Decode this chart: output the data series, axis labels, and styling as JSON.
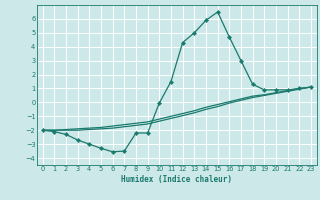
{
  "title": "",
  "xlabel": "Humidex (Indice chaleur)",
  "ylabel": "",
  "bg_color": "#cce8e8",
  "grid_color": "#ffffff",
  "line_color": "#1a7a6e",
  "marker": "D",
  "markersize": 2.2,
  "linewidth": 0.9,
  "xlim": [
    -0.5,
    23.5
  ],
  "ylim": [
    -4.5,
    7.0
  ],
  "xticks": [
    0,
    1,
    2,
    3,
    4,
    5,
    6,
    7,
    8,
    9,
    10,
    11,
    12,
    13,
    14,
    15,
    16,
    17,
    18,
    19,
    20,
    21,
    22,
    23
  ],
  "yticks": [
    -4,
    -3,
    -2,
    -1,
    0,
    1,
    2,
    3,
    4,
    5,
    6
  ],
  "line1_x": [
    0,
    1,
    2,
    3,
    4,
    5,
    6,
    7,
    8,
    9,
    10,
    11,
    12,
    13,
    14,
    15,
    16,
    17,
    18,
    19,
    20,
    21,
    22,
    23
  ],
  "line1_y": [
    -2.0,
    -2.1,
    -2.3,
    -2.7,
    -3.0,
    -3.3,
    -3.55,
    -3.5,
    -2.2,
    -2.2,
    -0.05,
    1.5,
    4.3,
    5.0,
    5.9,
    6.5,
    4.7,
    3.0,
    1.3,
    0.9,
    0.9,
    0.9,
    1.0,
    1.1
  ],
  "line2_x": [
    0,
    1,
    2,
    3,
    4,
    5,
    6,
    7,
    8,
    9,
    10,
    11,
    12,
    13,
    14,
    15,
    16,
    17,
    18,
    19,
    20,
    21,
    22,
    23
  ],
  "line2_y": [
    -2.0,
    -2.0,
    -1.95,
    -1.9,
    -1.85,
    -1.8,
    -1.7,
    -1.6,
    -1.5,
    -1.4,
    -1.2,
    -1.0,
    -0.8,
    -0.6,
    -0.35,
    -0.15,
    0.05,
    0.25,
    0.45,
    0.55,
    0.7,
    0.85,
    1.0,
    1.1
  ],
  "line3_x": [
    0,
    1,
    2,
    3,
    4,
    5,
    6,
    7,
    8,
    9,
    10,
    11,
    12,
    13,
    14,
    15,
    16,
    17,
    18,
    19,
    20,
    21,
    22,
    23
  ],
  "line3_y": [
    -2.0,
    -2.0,
    -2.0,
    -2.0,
    -1.95,
    -1.9,
    -1.85,
    -1.75,
    -1.65,
    -1.55,
    -1.35,
    -1.15,
    -0.95,
    -0.75,
    -0.5,
    -0.3,
    -0.05,
    0.15,
    0.35,
    0.5,
    0.65,
    0.8,
    0.95,
    1.1
  ]
}
